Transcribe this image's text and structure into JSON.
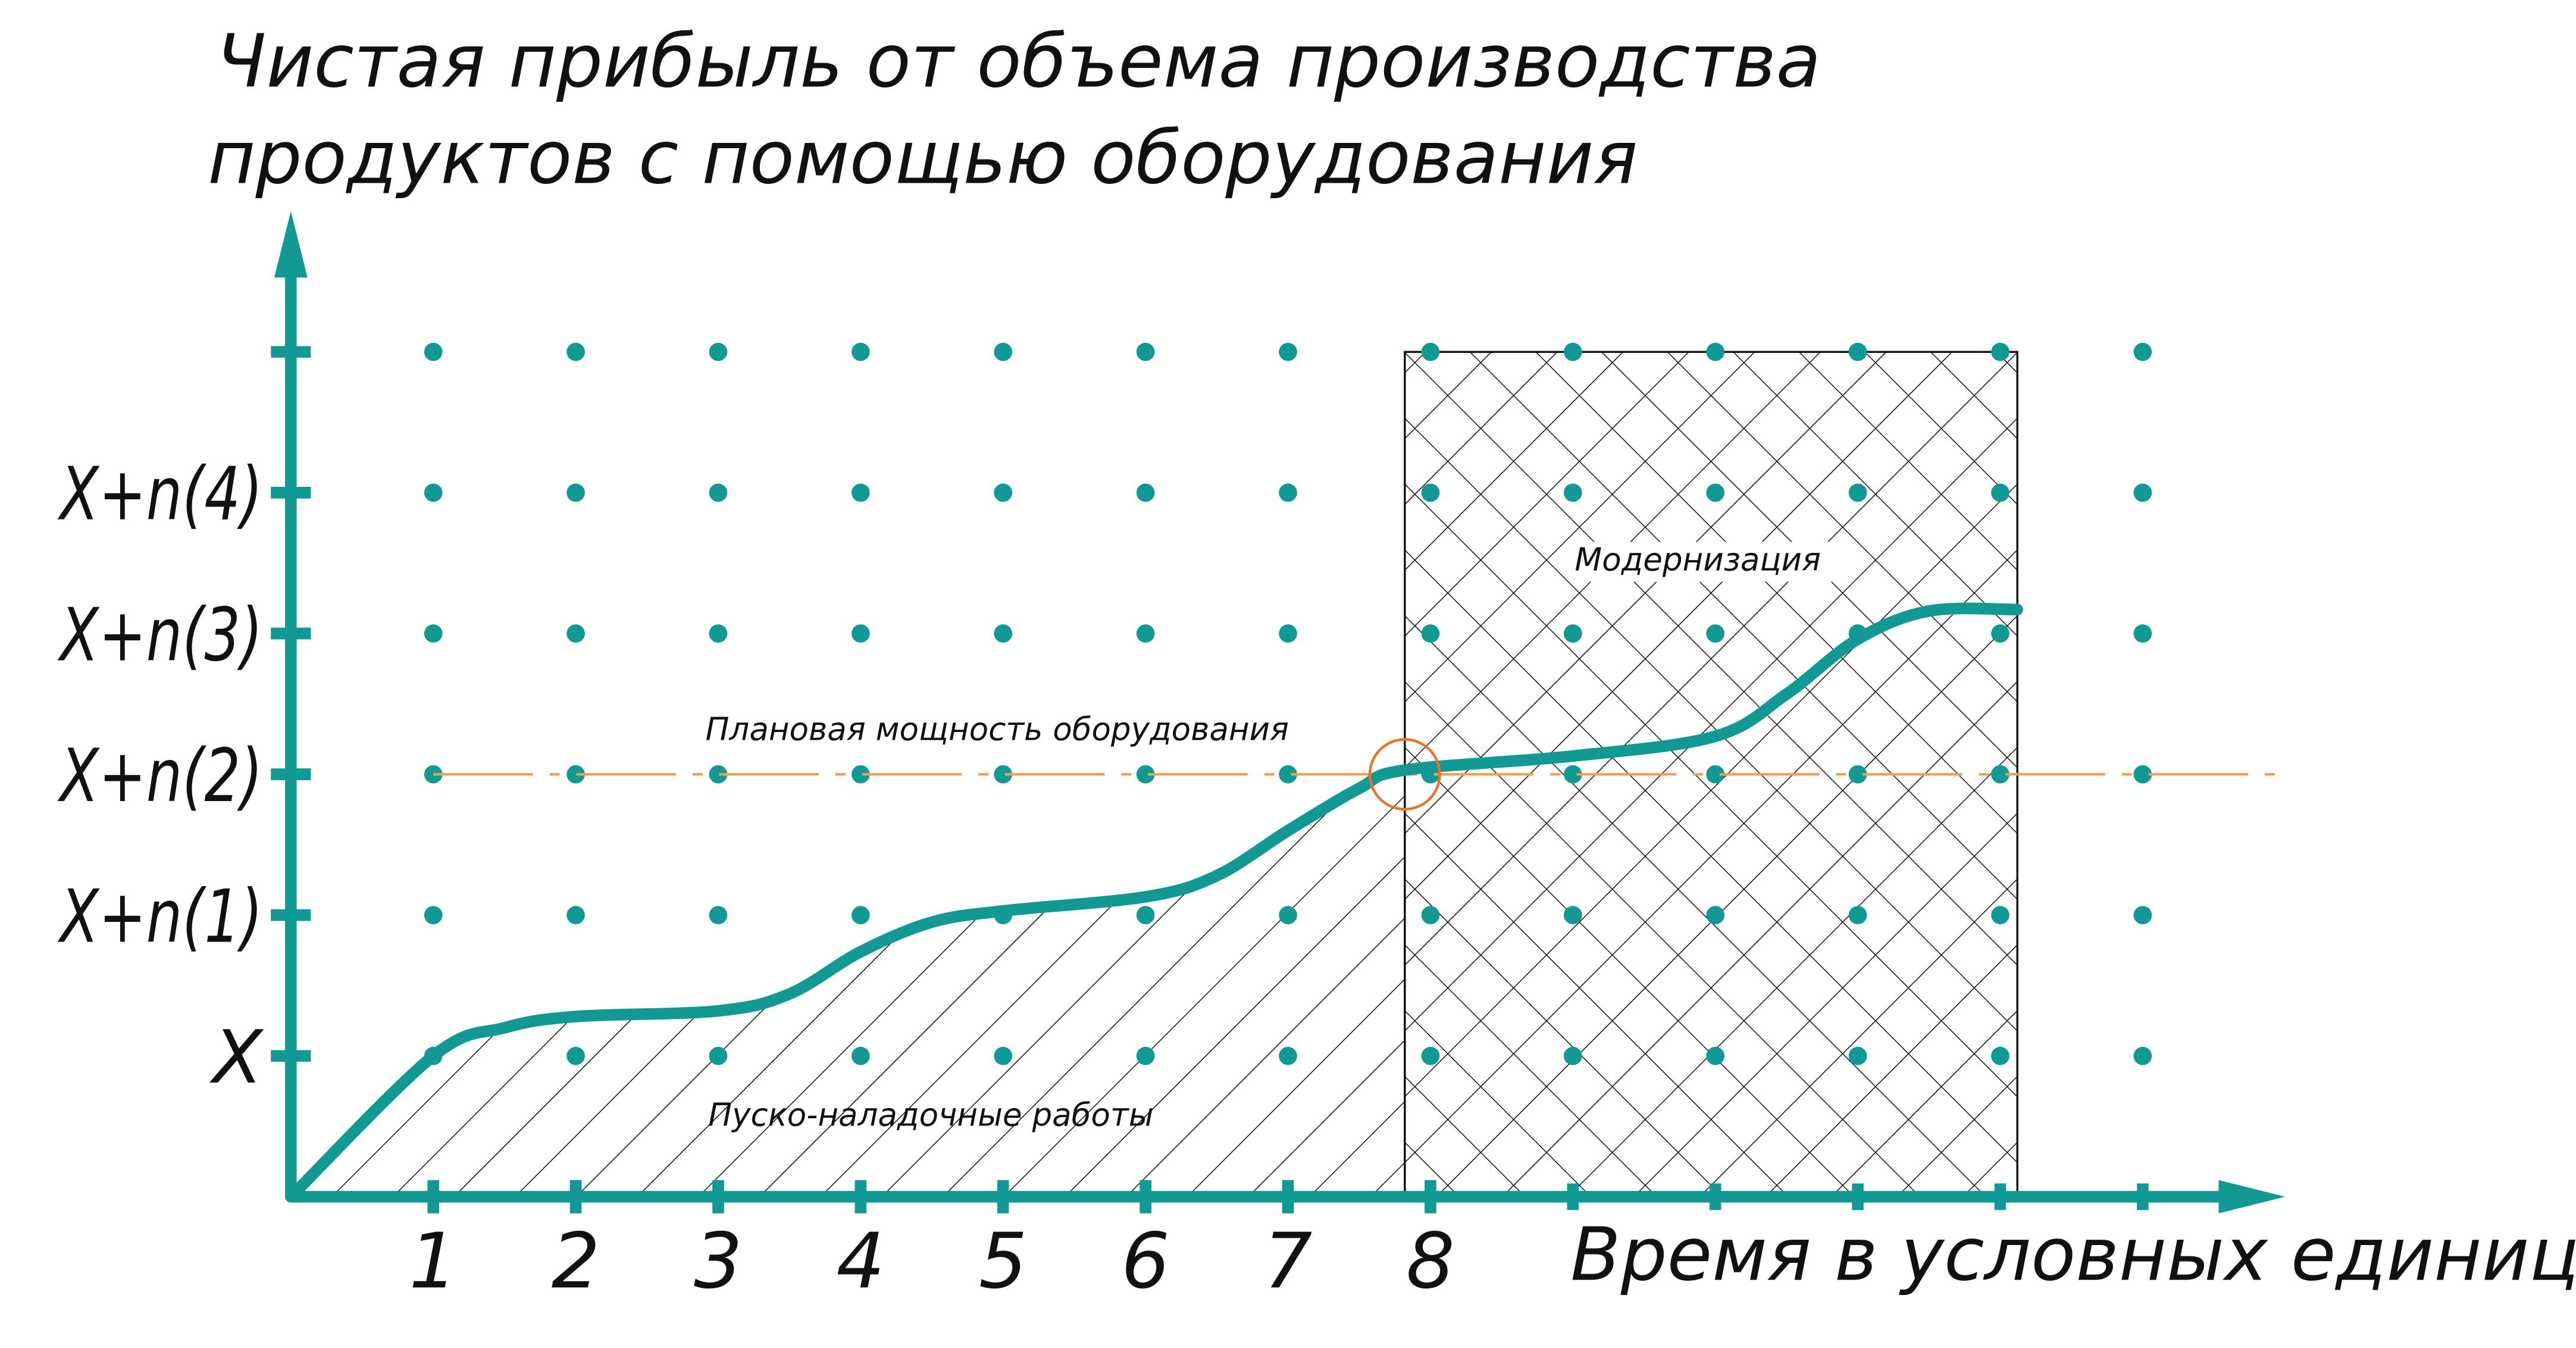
{
  "chart_data": {
    "type": "line",
    "title": [
      "Чистая прибыль от объема производства",
      "продуктов с помощью оборудования"
    ],
    "x_label": "Время в условных единицах",
    "xlim": [
      0,
      14
    ],
    "ylim": [
      0,
      7
    ],
    "xticks": [
      1,
      2,
      3,
      4,
      5,
      6,
      7,
      8
    ],
    "yticks": [
      {
        "value": 1,
        "label": "X"
      },
      {
        "value": 2,
        "label": "X+n(1)"
      },
      {
        "value": 3,
        "label": "X+n(2)"
      },
      {
        "value": 4,
        "label": "X+n(3)"
      },
      {
        "value": 5,
        "label": "X+n(4)"
      }
    ],
    "grid": "dots",
    "axis_color": "#119a93",
    "x": [
      0,
      1,
      1.5,
      2,
      3,
      3.5,
      4,
      4.5,
      5,
      6,
      6.5,
      7,
      7.5,
      7.82,
      9,
      10,
      10.5,
      11,
      11.5,
      12.12
    ],
    "series": [
      {
        "color": "#119a93",
        "values": [
          0,
          1,
          1.2,
          1.28,
          1.32,
          1.44,
          1.74,
          1.95,
          2.03,
          2.13,
          2.28,
          2.6,
          2.9,
          3.03,
          3.13,
          3.27,
          3.57,
          3.96,
          4.16,
          4.17
        ]
      }
    ],
    "plan_line": {
      "label": "Плановая мощность оборудования",
      "value": 3,
      "x_start": 1,
      "color": "#f0a050"
    },
    "intersection": {
      "x": 7.82,
      "y": 3,
      "color": "#e8742a"
    },
    "regions": [
      {
        "label": "Пуско-наладочные работы",
        "x_range": [
          0,
          7.82
        ],
        "hatch": "single"
      },
      {
        "label": "Модернизация",
        "x_range": [
          7.82,
          12.12
        ],
        "y_top": 6,
        "hatch": "cross"
      }
    ]
  }
}
